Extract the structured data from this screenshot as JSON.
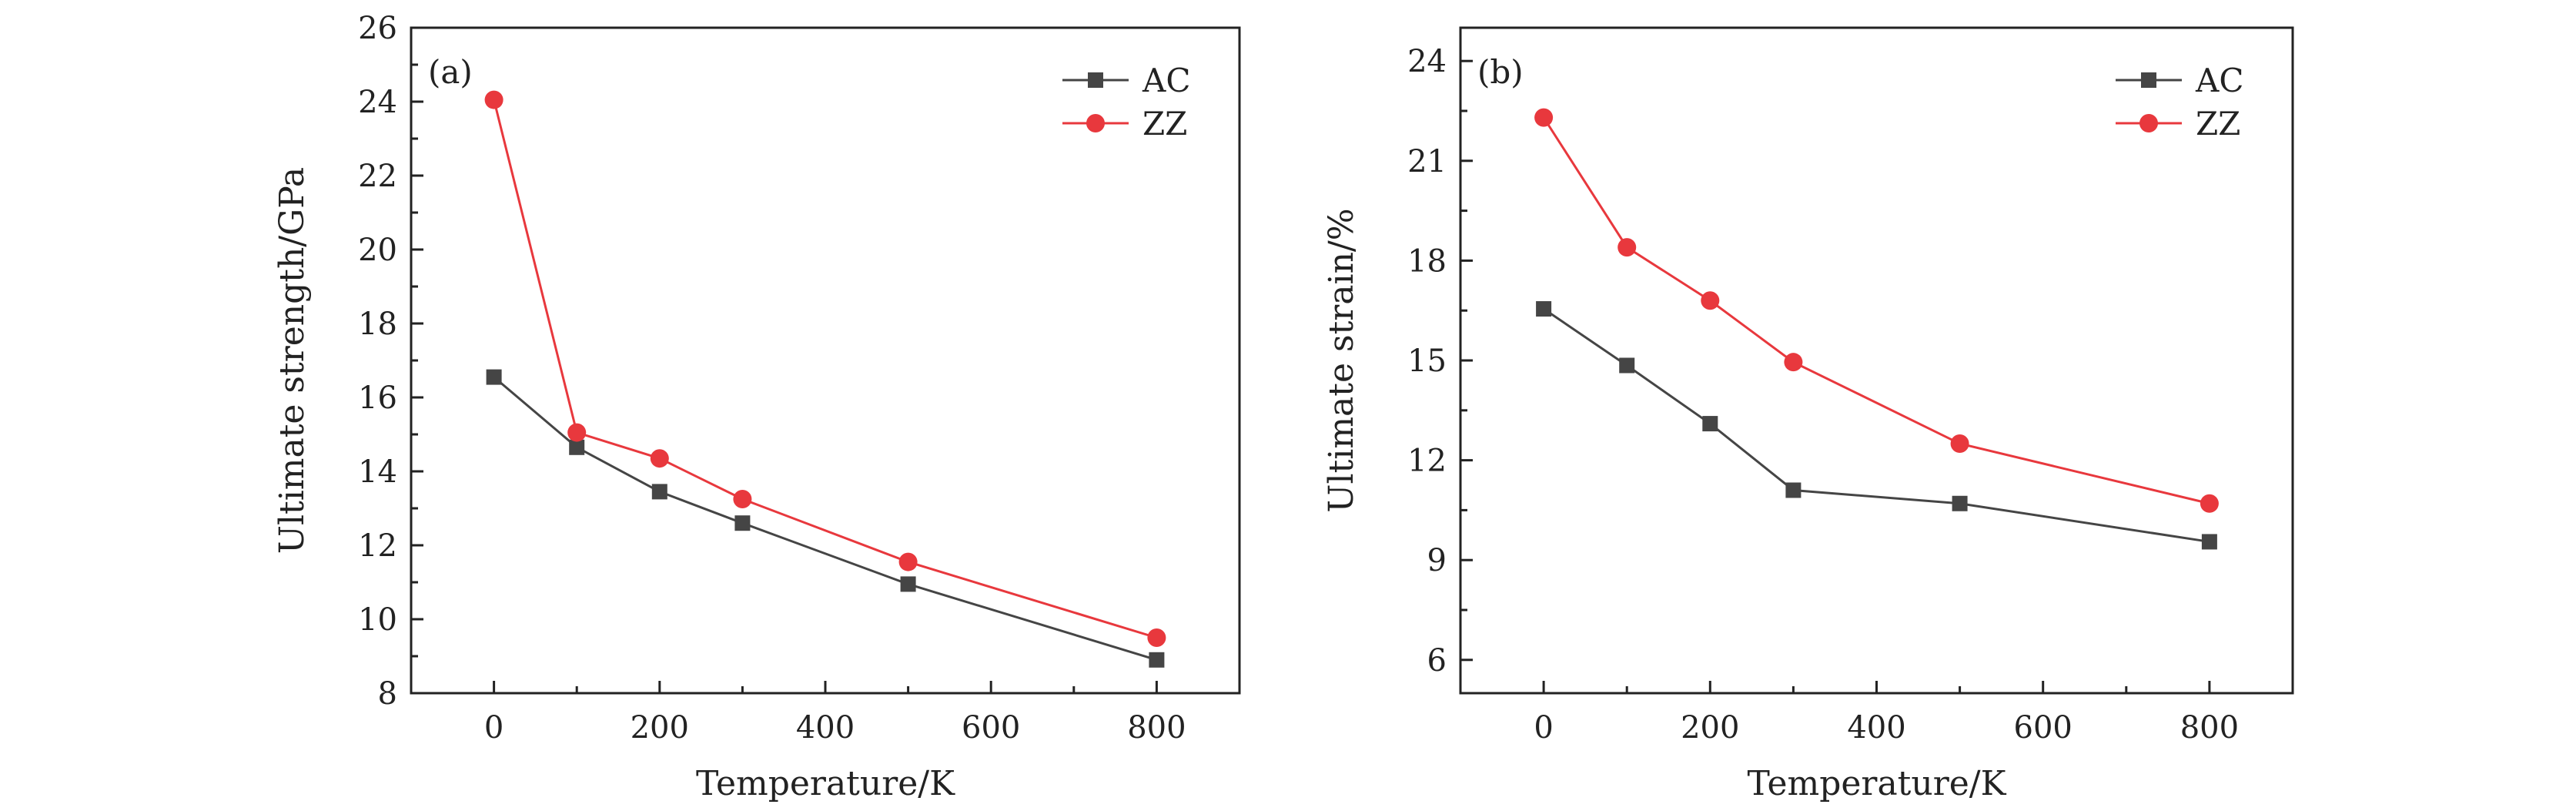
{
  "chart_data": [
    {
      "type": "line",
      "panel_label": "(a)",
      "title": "",
      "xlabel": "Temperature/K",
      "ylabel": "Ultimate strength/GPa",
      "xlim": [
        -100,
        900
      ],
      "ylim": [
        8,
        26
      ],
      "xticks": [
        0,
        200,
        400,
        600,
        800
      ],
      "yticks": [
        8,
        10,
        12,
        14,
        16,
        18,
        20,
        22,
        24,
        26
      ],
      "grid": false,
      "legend_position": "top-right",
      "x": [
        0,
        100,
        200,
        300,
        500,
        800
      ],
      "series": [
        {
          "name": "AC",
          "color": "#454545",
          "marker": "square",
          "values": [
            16.55,
            14.65,
            13.45,
            12.6,
            10.95,
            8.9
          ]
        },
        {
          "name": "ZZ",
          "color": "#e8383d",
          "marker": "circle",
          "values": [
            24.05,
            15.05,
            14.35,
            13.25,
            11.55,
            9.5
          ]
        }
      ]
    },
    {
      "type": "line",
      "panel_label": "(b)",
      "title": "",
      "xlabel": "Temperature/K",
      "ylabel": "Ultimate strain/%",
      "xlim": [
        -100,
        900
      ],
      "ylim": [
        5,
        25
      ],
      "xticks": [
        0,
        200,
        400,
        600,
        800
      ],
      "yticks": [
        6,
        9,
        12,
        15,
        18,
        21,
        24
      ],
      "grid": false,
      "legend_position": "top-right",
      "x": [
        0,
        100,
        200,
        300,
        500,
        800
      ],
      "series": [
        {
          "name": "AC",
          "color": "#454545",
          "marker": "square",
          "values": [
            16.55,
            14.85,
            13.1,
            11.1,
            10.7,
            9.55
          ]
        },
        {
          "name": "ZZ",
          "color": "#e8383d",
          "marker": "circle",
          "values": [
            22.3,
            18.4,
            16.8,
            14.95,
            12.5,
            10.7
          ]
        }
      ]
    }
  ]
}
